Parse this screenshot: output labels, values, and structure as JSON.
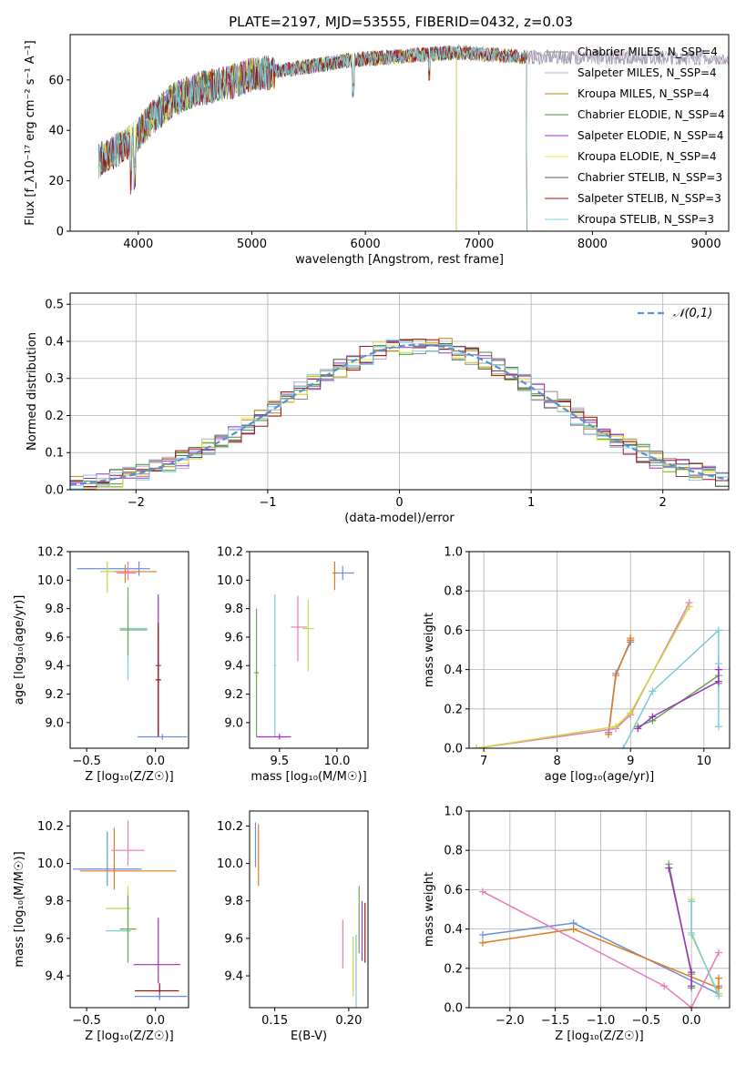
{
  "figure": {
    "title": "PLATE=2197, MJD=53555, FIBERID=0432, z=0.03"
  },
  "colors": {
    "grid": "#b0b0b0",
    "models": [
      "#8a8a8a",
      "#b8a8c8",
      "#b8860b",
      "#3d8f3d",
      "#9b30c0",
      "#e8e840",
      "#555555",
      "#a01010",
      "#80d0e0"
    ],
    "runs": [
      "#6a8fd8",
      "#e07b20",
      "#e87ab8",
      "#c8d840",
      "#7ec8d8",
      "#6aa84f",
      "#9b30c0",
      "#a01010"
    ]
  },
  "chart_data": [
    {
      "id": "spectrum",
      "type": "line",
      "xlabel": "wavelength [Angstrom, rest frame]",
      "ylabel": "Flux [f_λ10⁻¹⁷ erg cm⁻² s⁻¹ A⁻¹]",
      "xlim": [
        3400,
        9200
      ],
      "ylim": [
        0,
        78
      ],
      "xticks": [
        4000,
        5000,
        6000,
        7000,
        8000,
        9000
      ],
      "yticks": [
        0,
        20,
        40,
        60
      ],
      "grid": false,
      "legend": "top-right",
      "series": [
        {
          "name": "Chabrier MILES, N_SSP=4",
          "end": 9200
        },
        {
          "name": "Salpeter MILES, N_SSP=4",
          "end": 9200
        },
        {
          "name": "Kroupa MILES, N_SSP=4",
          "end": 7420
        },
        {
          "name": "Chabrier ELODIE, N_SSP=4",
          "end": 6800
        },
        {
          "name": "Salpeter ELODIE, N_SSP=4",
          "end": 6800
        },
        {
          "name": "Kroupa ELODIE, N_SSP=4",
          "end": 6800
        },
        {
          "name": "Chabrier STELIB, N_SSP=3",
          "end": 7420
        },
        {
          "name": "Salpeter STELIB, N_SSP=3",
          "end": 7420
        },
        {
          "name": "Kroupa STELIB, N_SSP=3",
          "end": 7420
        }
      ],
      "continuum": {
        "x": [
          3650,
          3800,
          3950,
          4100,
          4300,
          4500,
          4800,
          5000,
          5300,
          5600,
          5900,
          6200,
          6500,
          6800,
          7100,
          7420
        ],
        "y": [
          28,
          32,
          36,
          44,
          52,
          56,
          59,
          62,
          64,
          66,
          68,
          69,
          70,
          71,
          70,
          69
        ]
      }
    },
    {
      "id": "residuals",
      "type": "histogram",
      "xlabel": "(data-model)/error",
      "ylabel": "Normed distribution",
      "xlim": [
        -2.5,
        2.5
      ],
      "ylim": [
        0,
        0.53
      ],
      "xticks": [
        -2,
        -1,
        0,
        1,
        2
      ],
      "yticks": [
        0.0,
        0.1,
        0.2,
        0.3,
        0.4,
        0.5
      ],
      "grid": true,
      "legend": "top-right",
      "reference": {
        "name": "𝒩(0,1)",
        "mu": 0.15,
        "sigma": 1.02
      },
      "bins": 50
    },
    {
      "id": "age_vs_Z",
      "type": "errorbar",
      "xlabel": "Z [log₁₀(Z/Z☉)]",
      "ylabel": "age  [log₁₀(age/yr)]",
      "xlim": [
        -0.62,
        0.24
      ],
      "ylim": [
        8.82,
        10.2
      ],
      "xticks": [
        -0.5,
        0.0
      ],
      "yticks": [
        9.0,
        9.2,
        9.4,
        9.6,
        9.8,
        10.0,
        10.2
      ],
      "points": [
        {
          "x": -0.12,
          "xerr": [
            0.45,
            0.08
          ],
          "y": 10.08,
          "yerr": [
            0.05,
            0.05
          ]
        },
        {
          "x": -0.22,
          "xerr": [
            0.18,
            0.23
          ],
          "y": 10.06,
          "yerr": [
            0.08,
            0.05
          ]
        },
        {
          "x": -0.2,
          "xerr": [
            0.08,
            0.06
          ],
          "y": 10.05,
          "yerr": [
            0.05,
            0.08
          ]
        },
        {
          "x": -0.35,
          "xerr": [
            0.05,
            0.05
          ],
          "y": 10.06,
          "yerr": [
            0.15,
            0.07
          ]
        },
        {
          "x": -0.2,
          "xerr": [
            0.06,
            0.14
          ],
          "y": 9.66,
          "yerr": [
            0.36,
            0.18
          ]
        },
        {
          "x": -0.2,
          "xerr": [
            0.06,
            0.14
          ],
          "y": 9.65,
          "yerr": [
            0.18,
            0.3
          ]
        },
        {
          "x": 0.02,
          "xerr": [
            0.02,
            0.02
          ],
          "y": 9.4,
          "yerr": [
            0.5,
            0.5
          ]
        },
        {
          "x": 0.02,
          "xerr": [
            0.02,
            0.02
          ],
          "y": 9.3,
          "yerr": [
            0.4,
            0.4
          ]
        },
        {
          "x": 0.05,
          "xerr": [
            0.18,
            0.18
          ],
          "y": 8.9,
          "yerr": [
            0.02,
            0.02
          ]
        }
      ]
    },
    {
      "id": "age_vs_mass",
      "type": "errorbar",
      "xlabel": "mass [log₁₀(M/M☉)]",
      "ylabel": "",
      "xlim": [
        9.24,
        10.27
      ],
      "ylim": [
        8.82,
        10.2
      ],
      "xticks": [
        9.5,
        10.0
      ],
      "yticks": [
        9.0,
        9.2,
        9.4,
        9.6,
        9.8,
        10.0,
        10.2
      ],
      "points": [
        {
          "x": 10.05,
          "xerr": [
            0.08,
            0.1
          ],
          "y": 10.05,
          "yerr": [
            0.05,
            0.05
          ]
        },
        {
          "x": 9.98,
          "xerr": [
            0.02,
            0.02
          ],
          "y": 10.05,
          "yerr": [
            0.12,
            0.08
          ]
        },
        {
          "x": 9.66,
          "xerr": [
            0.06,
            0.08
          ],
          "y": 9.67,
          "yerr": [
            0.24,
            0.22
          ]
        },
        {
          "x": 9.75,
          "xerr": [
            0.05,
            0.05
          ],
          "y": 9.66,
          "yerr": [
            0.3,
            0.2
          ]
        },
        {
          "x": 9.46,
          "xerr": [
            0.01,
            0.01
          ],
          "y": 9.4,
          "yerr": [
            0.5,
            0.5
          ]
        },
        {
          "x": 9.3,
          "xerr": [
            0.02,
            0.02
          ],
          "y": 9.35,
          "yerr": [
            0.45,
            0.45
          ]
        },
        {
          "x": 9.5,
          "xerr": [
            0.2,
            0.1
          ],
          "y": 8.9,
          "yerr": [
            0.02,
            0.02
          ]
        }
      ]
    },
    {
      "id": "weight_vs_age",
      "type": "line",
      "xlabel": "age  [log₁₀(age/yr)]",
      "ylabel": "mass weight",
      "xlim": [
        6.8,
        10.35
      ],
      "ylim": [
        0,
        1.0
      ],
      "xticks": [
        7,
        8,
        9,
        10
      ],
      "yticks": [
        0.0,
        0.2,
        0.4,
        0.6,
        0.8,
        1.0
      ],
      "grid": true,
      "series": [
        {
          "x": [
            8.7,
            8.8,
            9.0,
            9.0
          ],
          "y": [
            0.08,
            0.38,
            0.54,
            0.55
          ]
        },
        {
          "x": [
            8.7,
            8.8,
            9.0,
            9.0
          ],
          "y": [
            0.07,
            0.37,
            0.55,
            0.56
          ]
        },
        {
          "x": [
            6.9,
            8.8,
            9.0,
            9.8
          ],
          "y": [
            0.0,
            0.1,
            0.17,
            0.74
          ]
        },
        {
          "x": [
            6.9,
            8.8,
            9.0,
            9.8
          ],
          "y": [
            0.0,
            0.11,
            0.18,
            0.72
          ]
        },
        {
          "x": [
            8.9,
            9.3,
            10.2,
            10.2,
            10.2
          ],
          "y": [
            0.0,
            0.29,
            0.6,
            0.43,
            0.11
          ]
        },
        {
          "x": [
            9.1,
            9.3,
            10.2,
            10.2
          ],
          "y": [
            0.11,
            0.14,
            0.37,
            0.33
          ]
        },
        {
          "x": [
            9.1,
            9.3,
            10.2,
            10.2
          ],
          "y": [
            0.1,
            0.16,
            0.34,
            0.4
          ]
        }
      ]
    },
    {
      "id": "mass_vs_Z",
      "type": "errorbar",
      "xlabel": "Z [log₁₀(Z/Z☉)]",
      "ylabel": "mass [log₁₀(M/M☉)]",
      "xlim": [
        -0.62,
        0.24
      ],
      "ylim": [
        9.23,
        10.28
      ],
      "xticks": [
        -0.5,
        0.0
      ],
      "yticks": [
        9.4,
        9.6,
        9.8,
        10.0,
        10.2
      ],
      "points": [
        {
          "x": -0.35,
          "xerr": [
            0.25,
            0.25
          ],
          "y": 9.97,
          "yerr": [
            0.09,
            0.2
          ]
        },
        {
          "x": -0.3,
          "xerr": [
            0.25,
            0.45
          ],
          "y": 9.96,
          "yerr": [
            0.1,
            0.23
          ]
        },
        {
          "x": -0.2,
          "xerr": [
            0.12,
            0.12
          ],
          "y": 10.07,
          "yerr": [
            0.08,
            0.16
          ]
        },
        {
          "x": -0.2,
          "xerr": [
            0.16,
            0.02
          ],
          "y": 9.76,
          "yerr": [
            0.08,
            0.12
          ]
        },
        {
          "x": -0.2,
          "xerr": [
            0.16,
            0.02
          ],
          "y": 9.64,
          "yerr": [
            0.16,
            0.16
          ]
        },
        {
          "x": -0.2,
          "xerr": [
            0.06,
            0.06
          ],
          "y": 9.65,
          "yerr": [
            0.18,
            0.18
          ]
        },
        {
          "x": 0.02,
          "xerr": [
            0.18,
            0.16
          ],
          "y": 9.46,
          "yerr": [
            0.1,
            0.25
          ]
        },
        {
          "x": 0.03,
          "xerr": [
            0.18,
            0.14
          ],
          "y": 9.32,
          "yerr": [
            0.04,
            0.04
          ]
        },
        {
          "x": 0.03,
          "xerr": [
            0.18,
            0.2
          ],
          "y": 9.29,
          "yerr": [
            0.02,
            0.02
          ]
        }
      ]
    },
    {
      "id": "mass_vs_ebv",
      "type": "errorbar",
      "xlabel": "E(B-V)",
      "ylabel": "",
      "xlim": [
        0.133,
        0.213
      ],
      "ylim": [
        9.23,
        10.28
      ],
      "xticks": [
        0.15,
        0.2
      ],
      "yticks": [
        9.4,
        9.6,
        9.8,
        10.0,
        10.2
      ],
      "points": [
        {
          "x": 0.137,
          "xerr": [
            0.0,
            0.0
          ],
          "y": 10.1,
          "yerr": [
            0.12,
            0.12
          ]
        },
        {
          "x": 0.139,
          "xerr": [
            0.0,
            0.0
          ],
          "y": 10.05,
          "yerr": [
            0.17,
            0.16
          ]
        },
        {
          "x": 0.196,
          "xerr": [
            0.0,
            0.0
          ],
          "y": 9.57,
          "yerr": [
            0.13,
            0.13
          ]
        },
        {
          "x": 0.203,
          "xerr": [
            0.0,
            0.0
          ],
          "y": 9.45,
          "yerr": [
            0.16,
            0.16
          ]
        },
        {
          "x": 0.205,
          "xerr": [
            0.0,
            0.0
          ],
          "y": 9.42,
          "yerr": [
            0.2,
            0.2
          ]
        },
        {
          "x": 0.207,
          "xerr": [
            0.0,
            0.0
          ],
          "y": 9.7,
          "yerr": [
            0.18,
            0.18
          ]
        },
        {
          "x": 0.209,
          "xerr": [
            0.0,
            0.0
          ],
          "y": 9.64,
          "yerr": [
            0.16,
            0.16
          ]
        },
        {
          "x": 0.211,
          "xerr": [
            0.0,
            0.0
          ],
          "y": 9.63,
          "yerr": [
            0.16,
            0.16
          ]
        }
      ]
    },
    {
      "id": "weight_vs_Z",
      "type": "line",
      "xlabel": "Z [log₁₀(Z/Z☉)]",
      "ylabel": "mass weight",
      "xlim": [
        -2.45,
        0.42
      ],
      "ylim": [
        0,
        1.0
      ],
      "xticks": [
        -2.0,
        -1.5,
        -1.0,
        -0.5,
        0.0
      ],
      "yticks": [
        0.0,
        0.2,
        0.4,
        0.6,
        0.8,
        1.0
      ],
      "grid": true,
      "series": [
        {
          "x": [
            -2.3,
            -1.3,
            0.3,
            0.3
          ],
          "y": [
            0.37,
            0.43,
            0.07,
            0.11
          ]
        },
        {
          "x": [
            -2.3,
            -1.3,
            0.3,
            0.3
          ],
          "y": [
            0.33,
            0.4,
            0.1,
            0.15
          ]
        },
        {
          "x": [
            -2.3,
            -0.3,
            0.0,
            0.3
          ],
          "y": [
            0.59,
            0.11,
            0.0,
            0.28
          ]
        },
        {
          "x": [
            0.0,
            0.0,
            0.3
          ],
          "y": [
            0.55,
            0.37,
            0.07
          ]
        },
        {
          "x": [
            0.0,
            0.0,
            0.3
          ],
          "y": [
            0.54,
            0.38,
            0.06
          ]
        },
        {
          "x": [
            -0.25,
            0.0,
            0.0
          ],
          "y": [
            0.73,
            0.17,
            0.1
          ]
        },
        {
          "x": [
            -0.25,
            0.0,
            0.0
          ],
          "y": [
            0.71,
            0.18,
            0.11
          ]
        }
      ]
    }
  ]
}
